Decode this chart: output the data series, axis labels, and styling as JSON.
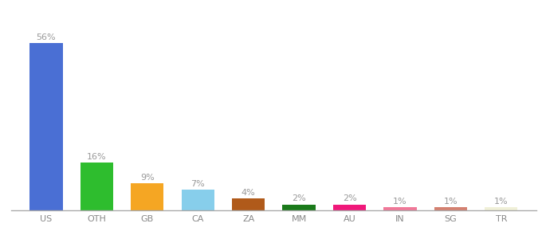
{
  "categories": [
    "US",
    "OTH",
    "GB",
    "CA",
    "ZA",
    "MM",
    "AU",
    "IN",
    "SG",
    "TR"
  ],
  "values": [
    56,
    16,
    9,
    7,
    4,
    2,
    2,
    1,
    1,
    1
  ],
  "bar_colors": [
    "#4a6fd4",
    "#2ebd2e",
    "#f5a623",
    "#87ceeb",
    "#b05a1a",
    "#1a7a1a",
    "#f0187a",
    "#f07898",
    "#d48070",
    "#f0f0d8"
  ],
  "label_color": "#999999",
  "background_color": "#ffffff",
  "ylim": [
    0,
    64
  ],
  "bar_width": 0.65,
  "label_fontsize": 8,
  "tick_fontsize": 8,
  "tick_color": "#888888"
}
